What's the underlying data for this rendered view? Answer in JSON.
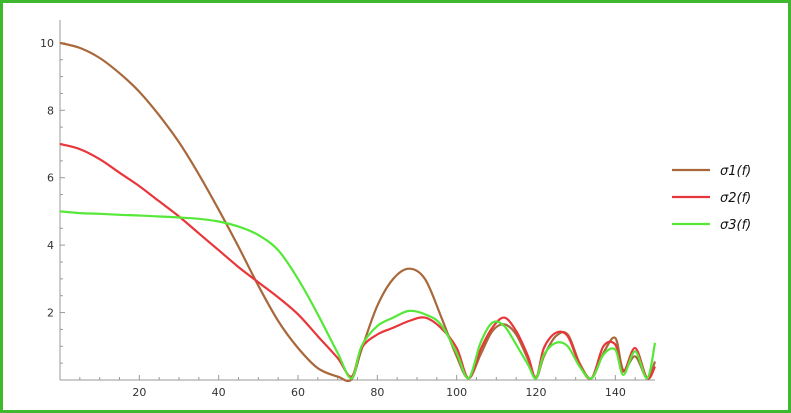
{
  "chart_data": {
    "type": "line",
    "title": "",
    "xlabel": "",
    "ylabel": "",
    "xlim": [
      0,
      150
    ],
    "ylim": [
      0,
      10.5
    ],
    "x_ticks": [
      20,
      40,
      60,
      80,
      100,
      120,
      140
    ],
    "y_ticks": [
      2,
      4,
      6,
      8,
      10
    ],
    "grid": false,
    "legend_position": "right",
    "series": [
      {
        "name": "σ1(f)",
        "color": "#a9683b",
        "x": [
          0,
          5,
          10,
          15,
          20,
          25,
          30,
          35,
          40,
          45,
          50,
          55,
          60,
          65,
          70,
          73.5,
          76,
          80,
          84,
          88,
          92,
          96,
          100,
          103,
          106,
          109,
          112,
          115,
          118,
          120,
          122,
          125,
          128,
          131,
          134,
          137,
          140,
          142,
          145,
          148,
          150
        ],
        "y": [
          10.0,
          9.85,
          9.55,
          9.1,
          8.55,
          7.85,
          7.05,
          6.1,
          5.05,
          3.95,
          2.8,
          1.75,
          0.95,
          0.35,
          0.1,
          0.02,
          0.9,
          2.2,
          3.0,
          3.3,
          3.0,
          1.9,
          0.7,
          0.05,
          0.75,
          1.45,
          1.65,
          1.35,
          0.6,
          0.05,
          0.7,
          1.3,
          1.35,
          0.5,
          0.05,
          0.8,
          1.25,
          0.3,
          0.7,
          0.05,
          0.55
        ]
      },
      {
        "name": "σ2(f)",
        "color": "#e8363a",
        "x": [
          0,
          5,
          10,
          15,
          20,
          25,
          30,
          35,
          40,
          45,
          50,
          55,
          60,
          65,
          70,
          73.5,
          76,
          80,
          84,
          88,
          92,
          96,
          100,
          103,
          106,
          109,
          112,
          115,
          118,
          120,
          122,
          125,
          128,
          131,
          134,
          137,
          140,
          142,
          145,
          148,
          150
        ],
        "y": [
          7.0,
          6.85,
          6.55,
          6.15,
          5.75,
          5.3,
          4.85,
          4.35,
          3.85,
          3.35,
          2.9,
          2.45,
          1.95,
          1.3,
          0.65,
          0.1,
          0.95,
          1.35,
          1.55,
          1.75,
          1.85,
          1.55,
          0.95,
          0.05,
          0.9,
          1.55,
          1.85,
          1.45,
          0.7,
          0.05,
          0.95,
          1.4,
          1.3,
          0.45,
          0.05,
          1.0,
          1.05,
          0.25,
          0.95,
          0.05,
          0.4
        ]
      },
      {
        "name": "σ3(f)",
        "color": "#55e838",
        "x": [
          0,
          5,
          10,
          15,
          20,
          25,
          30,
          35,
          40,
          45,
          50,
          55,
          60,
          65,
          70,
          73.5,
          76,
          80,
          84,
          88,
          92,
          96,
          100,
          103,
          106,
          109,
          112,
          115,
          118,
          120,
          122,
          125,
          128,
          131,
          134,
          137,
          140,
          142,
          145,
          148,
          150
        ],
        "y": [
          5.0,
          4.95,
          4.93,
          4.9,
          4.88,
          4.85,
          4.82,
          4.78,
          4.7,
          4.55,
          4.3,
          3.85,
          3.0,
          1.95,
          0.8,
          0.05,
          1.0,
          1.6,
          1.85,
          2.05,
          1.95,
          1.65,
          0.8,
          0.05,
          1.1,
          1.7,
          1.6,
          1.05,
          0.45,
          0.05,
          0.75,
          1.1,
          1.0,
          0.4,
          0.05,
          0.75,
          0.9,
          0.15,
          0.85,
          0.05,
          1.1
        ]
      }
    ]
  }
}
